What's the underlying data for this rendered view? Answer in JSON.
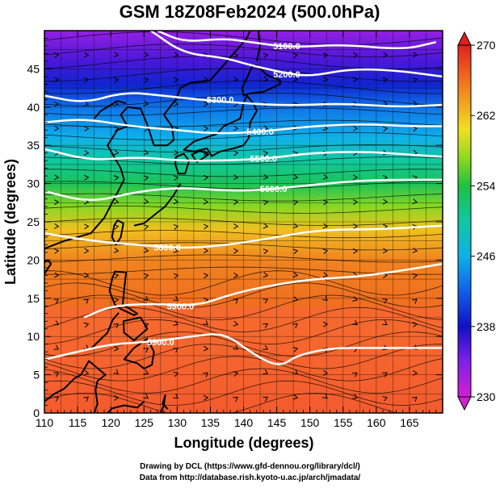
{
  "title": "GSM 18Z08Feb2024 (500.0hPa)",
  "credits": {
    "line1": "Drawing by DCL (https://www.gfd-dennou.org/library/dcl/)",
    "line2": "Data from http://database.rish.kyoto-u.ac.jp/arch/jmadata/"
  },
  "chart_data": {
    "type": "heatmap",
    "title": "GSM 18Z08Feb2024 (500.0hPa)",
    "xlabel": "Longitude (degrees)",
    "ylabel": "Latitude  (degrees)",
    "xlim": [
      110,
      170
    ],
    "ylim": [
      0,
      50
    ],
    "x_ticks": [
      110,
      115,
      120,
      125,
      130,
      135,
      140,
      145,
      150,
      155,
      160,
      165
    ],
    "y_ticks": [
      0,
      5,
      10,
      15,
      20,
      25,
      30,
      35,
      40,
      45
    ],
    "colorbar": {
      "min": 230,
      "max": 270,
      "ticks": [
        230,
        238,
        246,
        254,
        262,
        270
      ]
    },
    "temperature_by_latitude": [
      {
        "lat": 0,
        "value": 267
      },
      {
        "lat": 10,
        "value": 266
      },
      {
        "lat": 15,
        "value": 266
      },
      {
        "lat": 20,
        "value": 265
      },
      {
        "lat": 24,
        "value": 262
      },
      {
        "lat": 27,
        "value": 257
      },
      {
        "lat": 30,
        "value": 253
      },
      {
        "lat": 33,
        "value": 250
      },
      {
        "lat": 36,
        "value": 246
      },
      {
        "lat": 40,
        "value": 243
      },
      {
        "lat": 43,
        "value": 239
      },
      {
        "lat": 46,
        "value": 236
      },
      {
        "lat": 50,
        "value": 233
      }
    ],
    "contours": [
      {
        "label": "5100.0",
        "lat": 47.5
      },
      {
        "label": "5200.0",
        "lat": 44.5
      },
      {
        "label": "5300.0",
        "lat": 41.0
      },
      {
        "label": "5400.0",
        "lat": 37.0
      },
      {
        "label": "5500.0",
        "lat": 33.5
      },
      {
        "label": "5600.0",
        "lat": 29.5
      },
      {
        "label": "5800.0",
        "lat": 21.5
      },
      {
        "label": "5900.0",
        "lat": 14.0
      },
      {
        "label": "5900.0",
        "lat": 9.0
      }
    ],
    "contour_paths": [
      {
        "label": "5100.0",
        "label_at": [
          146.5,
          48.0
        ],
        "points": [
          [
            127,
            50
          ],
          [
            131,
            48.5
          ],
          [
            137,
            49
          ],
          [
            141,
            48.5
          ],
          [
            147,
            47.8
          ],
          [
            155,
            48.2
          ],
          [
            164,
            47.5
          ],
          [
            169,
            48.5
          ]
        ]
      },
      {
        "label": "5200.0",
        "label_at": [
          146.5,
          44.3
        ],
        "points": [
          [
            126,
            50
          ],
          [
            131,
            47
          ],
          [
            137,
            46.5
          ],
          [
            141,
            45.5
          ],
          [
            146,
            44.5
          ],
          [
            150,
            44.0
          ],
          [
            156,
            45.0
          ],
          [
            163,
            44.8
          ],
          [
            170,
            44.0
          ]
        ]
      },
      {
        "label": "5300.0",
        "label_at": [
          136.5,
          41.0
        ],
        "points": [
          [
            110,
            41.5
          ],
          [
            116,
            40.5
          ],
          [
            122,
            42.0
          ],
          [
            128,
            41.5
          ],
          [
            133,
            41.0
          ],
          [
            140,
            40.5
          ],
          [
            147,
            40.2
          ],
          [
            155,
            40.5
          ],
          [
            163,
            40.0
          ],
          [
            170,
            40.3
          ]
        ]
      },
      {
        "label": "5400.0",
        "label_at": [
          142.5,
          36.8
        ],
        "points": [
          [
            110,
            38.0
          ],
          [
            116,
            38.5
          ],
          [
            123,
            37.5
          ],
          [
            130,
            37.0
          ],
          [
            136,
            36.5
          ],
          [
            143,
            36.8
          ],
          [
            150,
            37.5
          ],
          [
            158,
            37.8
          ],
          [
            165,
            37.5
          ],
          [
            170,
            37.5
          ]
        ]
      },
      {
        "label": "5500.0",
        "label_at": [
          143.0,
          33.3
        ],
        "points": [
          [
            110,
            34.5
          ],
          [
            117,
            33.0
          ],
          [
            124,
            33.5
          ],
          [
            130,
            33.0
          ],
          [
            137,
            33.0
          ],
          [
            144,
            33.3
          ],
          [
            150,
            34.0
          ],
          [
            158,
            34.2
          ],
          [
            165,
            33.8
          ],
          [
            170,
            33.5
          ]
        ]
      },
      {
        "label": "5600.0",
        "label_at": [
          144.5,
          29.3
        ],
        "points": [
          [
            110,
            29.0
          ],
          [
            117,
            27.5
          ],
          [
            124,
            29.0
          ],
          [
            131,
            29.5
          ],
          [
            138,
            29.0
          ],
          [
            145,
            29.3
          ],
          [
            152,
            30.0
          ],
          [
            160,
            30.5
          ],
          [
            170,
            30.5
          ]
        ]
      },
      {
        "label": "5800.0",
        "label_at": [
          128.5,
          21.7
        ],
        "points": [
          [
            110,
            23.5
          ],
          [
            117,
            22.5
          ],
          [
            124,
            22.0
          ],
          [
            131,
            21.5
          ],
          [
            138,
            22.0
          ],
          [
            145,
            23.0
          ],
          [
            152,
            24.0
          ],
          [
            160,
            24.0
          ],
          [
            170,
            24.5
          ]
        ]
      },
      {
        "label": "5900.0",
        "label_at": [
          130.5,
          14.0
        ],
        "points": [
          [
            116,
            12.5
          ],
          [
            120,
            14.0
          ],
          [
            126,
            14.3
          ],
          [
            133,
            14.0
          ],
          [
            138,
            15.5
          ],
          [
            143,
            16.5
          ],
          [
            150,
            17.5
          ],
          [
            157,
            17.8
          ],
          [
            163,
            18.5
          ],
          [
            170,
            19.5
          ]
        ]
      },
      {
        "label": "5900.0",
        "label_at": [
          127.5,
          9.3
        ],
        "points": [
          [
            110,
            7.0
          ],
          [
            115,
            8.0
          ],
          [
            120,
            9.0
          ],
          [
            126,
            9.3
          ],
          [
            132,
            10.0
          ],
          [
            137,
            10.5
          ],
          [
            141,
            8.0
          ],
          [
            144,
            6.5
          ],
          [
            146,
            6.3
          ],
          [
            148,
            7.5
          ],
          [
            153,
            8.5
          ],
          [
            160,
            8.5
          ],
          [
            170,
            8.5
          ]
        ]
      }
    ],
    "coastlines": [
      {
        "name": "asia-mainland",
        "points": [
          [
            110,
            21.5
          ],
          [
            113,
            22.5
          ],
          [
            117,
            23.5
          ],
          [
            119,
            25.5
          ],
          [
            120.5,
            28
          ],
          [
            122,
            30.5
          ],
          [
            121.5,
            32
          ],
          [
            120.5,
            33.5
          ],
          [
            119.5,
            35
          ],
          [
            121,
            37
          ],
          [
            122.5,
            37.5
          ],
          [
            121.5,
            39
          ],
          [
            122.5,
            40
          ],
          [
            124.5,
            39.8
          ],
          [
            125.5,
            37.7
          ],
          [
            126.5,
            35
          ],
          [
            128.5,
            35
          ],
          [
            129.5,
            35.7
          ],
          [
            129.2,
            37.5
          ],
          [
            128,
            39
          ],
          [
            129.8,
            41
          ],
          [
            130.5,
            42.5
          ],
          [
            132,
            43.2
          ],
          [
            135,
            43.5
          ],
          [
            138,
            46.5
          ],
          [
            140.5,
            49
          ],
          [
            141,
            50
          ]
        ]
      },
      {
        "name": "bohai",
        "points": [
          [
            117.5,
            38.5
          ],
          [
            118.5,
            39.5
          ],
          [
            121,
            40.8
          ],
          [
            122.3,
            40.5
          ]
        ]
      },
      {
        "name": "taiwan",
        "closed": true,
        "points": [
          [
            121,
            25.2
          ],
          [
            121.9,
            24.8
          ],
          [
            121.5,
            23
          ],
          [
            120.8,
            22
          ],
          [
            120.2,
            23
          ],
          [
            120.5,
            24.5
          ]
        ]
      },
      {
        "name": "hainan",
        "closed": true,
        "points": [
          [
            108.8,
            19
          ],
          [
            110.5,
            20
          ],
          [
            111,
            19.5
          ],
          [
            110,
            18.2
          ]
        ]
      },
      {
        "name": "kyushu",
        "closed": true,
        "points": [
          [
            129.8,
            33.5
          ],
          [
            131,
            33.9
          ],
          [
            131.8,
            33
          ],
          [
            131.2,
            31.3
          ],
          [
            130.2,
            31.3
          ],
          [
            129.7,
            32.5
          ]
        ]
      },
      {
        "name": "shikoku",
        "closed": true,
        "points": [
          [
            132.2,
            33.8
          ],
          [
            133.5,
            34.3
          ],
          [
            134.7,
            33.8
          ],
          [
            133,
            32.8
          ]
        ]
      },
      {
        "name": "honshu",
        "closed": true,
        "points": [
          [
            131,
            34.4
          ],
          [
            132.5,
            35.5
          ],
          [
            136,
            36.5
          ],
          [
            137,
            37.5
          ],
          [
            139.5,
            38.5
          ],
          [
            140,
            40.5
          ],
          [
            140.5,
            41.5
          ],
          [
            141.5,
            40.5
          ],
          [
            142,
            39.5
          ],
          [
            141,
            38
          ],
          [
            140.8,
            36
          ],
          [
            140,
            35
          ],
          [
            138.5,
            34.6
          ],
          [
            136.5,
            34.2
          ],
          [
            135.2,
            33.6
          ],
          [
            134.5,
            34.6
          ],
          [
            132.5,
            34.2
          ]
        ]
      },
      {
        "name": "hokkaido",
        "closed": true,
        "points": [
          [
            140,
            41.5
          ],
          [
            139.8,
            42.5
          ],
          [
            141.3,
            45.3
          ],
          [
            142,
            45.5
          ],
          [
            143.5,
            44.2
          ],
          [
            145.5,
            43.5
          ],
          [
            145.5,
            43
          ],
          [
            143,
            42
          ],
          [
            141,
            41.8
          ]
        ]
      },
      {
        "name": "sakhalin",
        "points": [
          [
            142,
            46
          ],
          [
            142.5,
            48
          ],
          [
            142.2,
            50
          ]
        ]
      },
      {
        "name": "ryukyu",
        "points": [
          [
            123.5,
            24.5
          ],
          [
            125,
            24.8
          ],
          [
            127,
            26.2
          ],
          [
            128.2,
            27
          ],
          [
            129.5,
            28.5
          ],
          [
            130.5,
            30
          ]
        ]
      },
      {
        "name": "luzon",
        "closed": true,
        "points": [
          [
            120.6,
            18.5
          ],
          [
            122.3,
            18.4
          ],
          [
            122,
            16
          ],
          [
            121.8,
            14.2
          ],
          [
            124,
            13
          ],
          [
            123.5,
            12.8
          ],
          [
            121.5,
            13.6
          ],
          [
            120.6,
            14.2
          ],
          [
            119.8,
            16
          ],
          [
            120.2,
            17.5
          ]
        ]
      },
      {
        "name": "mindoro-palawan",
        "points": [
          [
            117,
            8.4
          ],
          [
            119.5,
            10.5
          ],
          [
            120.3,
            12.2
          ],
          [
            121.2,
            13.1
          ]
        ]
      },
      {
        "name": "visayas",
        "closed": true,
        "points": [
          [
            121.9,
            12
          ],
          [
            124.5,
            12.5
          ],
          [
            125.5,
            11
          ],
          [
            123.5,
            9.5
          ],
          [
            122,
            10.5
          ]
        ]
      },
      {
        "name": "mindanao",
        "closed": true,
        "points": [
          [
            122,
            7
          ],
          [
            123.5,
            8.5
          ],
          [
            125.5,
            9.7
          ],
          [
            126.5,
            8
          ],
          [
            126.2,
            6.3
          ],
          [
            125,
            5.8
          ],
          [
            124,
            6.5
          ]
        ]
      },
      {
        "name": "borneo",
        "points": [
          [
            110,
            1.5
          ],
          [
            111.5,
            2.5
          ],
          [
            113,
            3.2
          ],
          [
            114.5,
            4.5
          ],
          [
            115.5,
            5
          ],
          [
            116.7,
            6.8
          ],
          [
            118.5,
            5.5
          ],
          [
            119.2,
            5
          ],
          [
            118,
            4.2
          ],
          [
            117.7,
            3
          ],
          [
            118,
            1.2
          ],
          [
            117.5,
            0
          ]
        ]
      },
      {
        "name": "sulawesi",
        "points": [
          [
            119.5,
            0
          ],
          [
            120.2,
            0.6
          ],
          [
            122,
            1
          ],
          [
            124,
            0.7
          ],
          [
            125,
            1.5
          ]
        ]
      },
      {
        "name": "halmahera",
        "points": [
          [
            127.5,
            0
          ],
          [
            128,
            1
          ],
          [
            128.2,
            2.3
          ],
          [
            127.8,
            1.2
          ],
          [
            128.6,
            0.5
          ]
        ]
      },
      {
        "name": "new-guinea-north",
        "points": [
          [
            131,
            0
          ],
          [
            132,
            -0.4
          ],
          [
            134,
            -0.8
          ]
        ]
      }
    ]
  }
}
